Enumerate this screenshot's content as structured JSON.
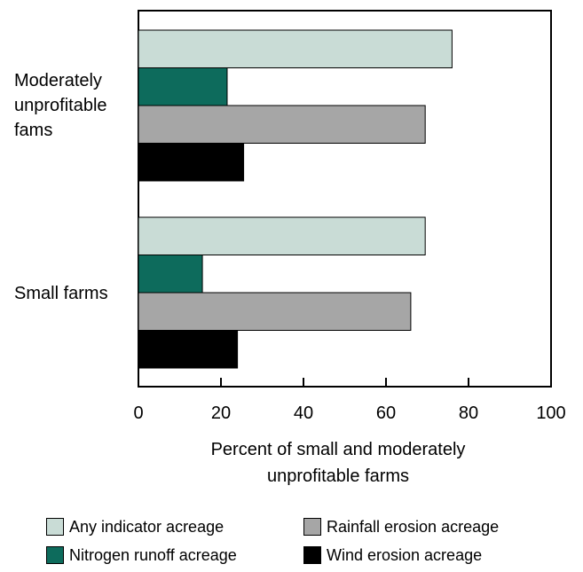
{
  "chart_data": {
    "type": "bar",
    "orientation": "horizontal",
    "categories": [
      "Moderately\nunprofitable\nfams",
      "Small farms"
    ],
    "series": [
      {
        "name": "Any indicator acreage",
        "color": "#c9dcd6",
        "values": [
          76,
          69.5
        ]
      },
      {
        "name": "Nitrogen runoff acreage",
        "color": "#0d6b5c",
        "values": [
          21.5,
          15.5
        ]
      },
      {
        "name": "Rainfall erosion acreage",
        "color": "#a6a6a6",
        "values": [
          69.5,
          66
        ]
      },
      {
        "name": "Wind erosion acreage",
        "color": "#000000",
        "values": [
          25.5,
          24
        ]
      }
    ],
    "xlim": [
      0,
      100
    ],
    "xticks": [
      "0",
      "20",
      "40",
      "60",
      "80",
      "100"
    ],
    "xlabel": "Percent of small and moderately\nunprofitable farms",
    "ylabel": "",
    "title": "",
    "legend_position": "bottom",
    "grid": false
  }
}
